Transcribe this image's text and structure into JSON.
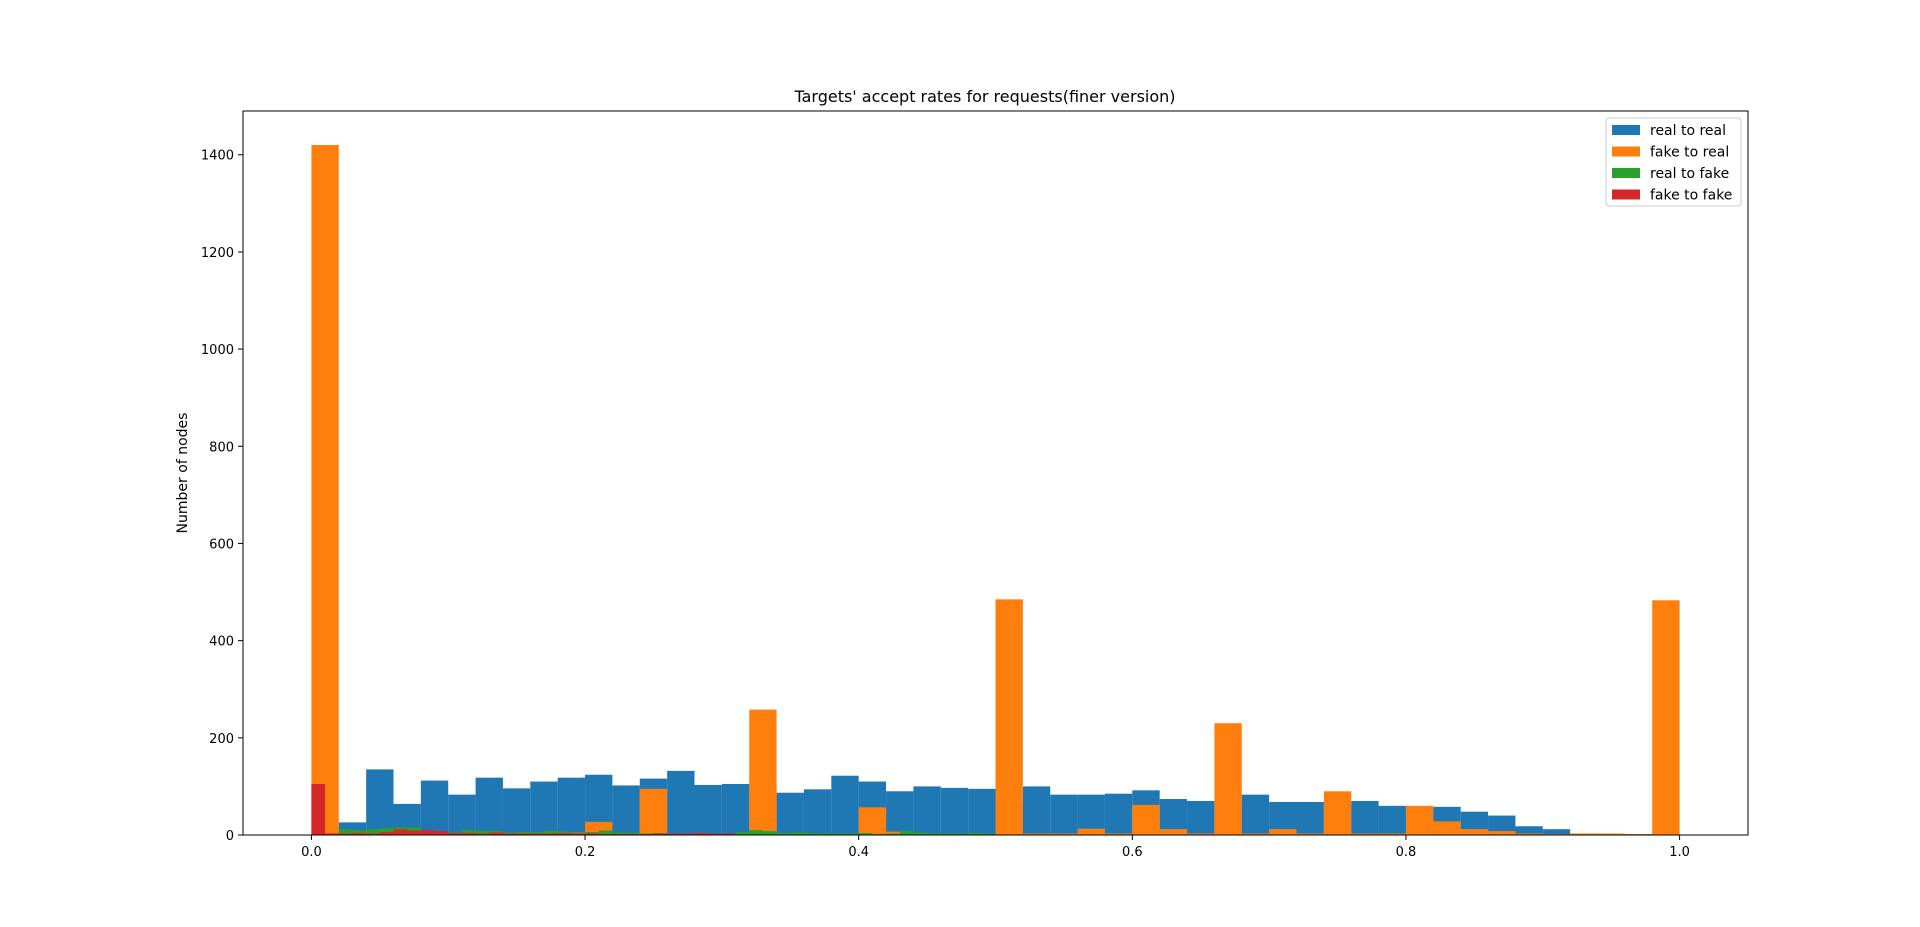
{
  "chart_data": {
    "type": "bar",
    "title": "Targets' accept rates for requests(finer version)",
    "xlabel": "",
    "ylabel": "Number of nodes",
    "xlim": [
      -0.05,
      1.05
    ],
    "ylim": [
      0,
      1490
    ],
    "xticks": [
      "0.0",
      "0.2",
      "0.4",
      "0.6",
      "0.8",
      "1.0"
    ],
    "yticks": [
      "0",
      "200",
      "400",
      "600",
      "800",
      "1000",
      "1200",
      "1400"
    ],
    "legend_position": "top-right",
    "colors": {
      "real to real": "#1f77b4",
      "fake to real": "#ff7f0e",
      "real to fake": "#2ca02c",
      "fake to fake": "#d62728"
    },
    "series": [
      {
        "name": "real to real",
        "bin_width": 0.02,
        "x": [
          0.0,
          0.02,
          0.04,
          0.06,
          0.08,
          0.1,
          0.12,
          0.14,
          0.16,
          0.18,
          0.2,
          0.22,
          0.24,
          0.26,
          0.28,
          0.3,
          0.32,
          0.34,
          0.36,
          0.38,
          0.4,
          0.42,
          0.44,
          0.46,
          0.48,
          0.5,
          0.52,
          0.54,
          0.56,
          0.58,
          0.6,
          0.62,
          0.64,
          0.66,
          0.68,
          0.7,
          0.72,
          0.74,
          0.76,
          0.78,
          0.8,
          0.82,
          0.84,
          0.86,
          0.88,
          0.9,
          0.92,
          0.94,
          0.96,
          0.98
        ],
        "values": [
          3,
          26,
          135,
          64,
          112,
          83,
          118,
          96,
          110,
          118,
          124,
          102,
          116,
          132,
          103,
          105,
          102,
          87,
          94,
          122,
          110,
          90,
          100,
          97,
          95,
          67,
          100,
          83,
          83,
          85,
          92,
          74,
          70,
          70,
          83,
          68,
          68,
          61,
          70,
          60,
          55,
          58,
          48,
          40,
          18,
          12,
          3,
          2,
          2,
          1
        ]
      },
      {
        "name": "fake to real",
        "bin_width": 0.02,
        "x": [
          0.0,
          0.02,
          0.04,
          0.06,
          0.08,
          0.1,
          0.12,
          0.14,
          0.16,
          0.18,
          0.2,
          0.22,
          0.24,
          0.26,
          0.28,
          0.3,
          0.32,
          0.34,
          0.36,
          0.38,
          0.4,
          0.42,
          0.44,
          0.46,
          0.48,
          0.5,
          0.52,
          0.54,
          0.56,
          0.58,
          0.6,
          0.62,
          0.64,
          0.66,
          0.68,
          0.7,
          0.72,
          0.74,
          0.76,
          0.78,
          0.8,
          0.82,
          0.84,
          0.86,
          0.88,
          0.9,
          0.92,
          0.94,
          0.96,
          0.98
        ],
        "values": [
          1420,
          5,
          3,
          4,
          4,
          3,
          3,
          3,
          3,
          5,
          27,
          3,
          95,
          3,
          3,
          3,
          258,
          3,
          3,
          3,
          57,
          7,
          3,
          3,
          3,
          485,
          3,
          3,
          13,
          3,
          62,
          12,
          3,
          230,
          3,
          12,
          3,
          90,
          3,
          3,
          60,
          28,
          12,
          8,
          3,
          2,
          3,
          3,
          2,
          483
        ]
      },
      {
        "name": "real to fake",
        "bin_width": 0.01,
        "x": [
          0.0,
          0.01,
          0.02,
          0.03,
          0.04,
          0.05,
          0.06,
          0.07,
          0.08,
          0.09,
          0.1,
          0.11,
          0.12,
          0.13,
          0.14,
          0.15,
          0.16,
          0.17,
          0.18,
          0.19,
          0.2,
          0.21,
          0.22,
          0.23,
          0.24,
          0.25,
          0.26,
          0.27,
          0.28,
          0.29,
          0.3,
          0.31,
          0.32,
          0.33,
          0.34,
          0.35,
          0.36,
          0.37,
          0.38,
          0.39,
          0.4,
          0.41,
          0.42,
          0.43,
          0.44,
          0.45,
          0.46,
          0.47,
          0.48,
          0.49
        ],
        "values": [
          0,
          3,
          12,
          10,
          12,
          14,
          16,
          16,
          10,
          6,
          5,
          10,
          9,
          8,
          5,
          6,
          6,
          8,
          7,
          4,
          6,
          9,
          5,
          4,
          3,
          4,
          3,
          3,
          3,
          3,
          3,
          6,
          10,
          8,
          4,
          5,
          4,
          3,
          3,
          3,
          4,
          2,
          3,
          8,
          5,
          3,
          3,
          3,
          4,
          3
        ]
      },
      {
        "name": "fake to fake",
        "bin_width": 0.01,
        "x": [
          0.0,
          0.01,
          0.02,
          0.03,
          0.04,
          0.05,
          0.06,
          0.07,
          0.08,
          0.09,
          0.1,
          0.11,
          0.12,
          0.13,
          0.14,
          0.15,
          0.16,
          0.17,
          0.18,
          0.19,
          0.2,
          0.21,
          0.22,
          0.23,
          0.24,
          0.25,
          0.26,
          0.27,
          0.28,
          0.29,
          0.3
        ],
        "values": [
          105,
          3,
          3,
          4,
          3,
          6,
          12,
          9,
          10,
          8,
          4,
          4,
          3,
          5,
          3,
          3,
          3,
          3,
          4,
          3,
          3,
          2,
          2,
          2,
          2,
          3,
          3,
          3,
          4,
          3,
          3
        ]
      }
    ]
  }
}
